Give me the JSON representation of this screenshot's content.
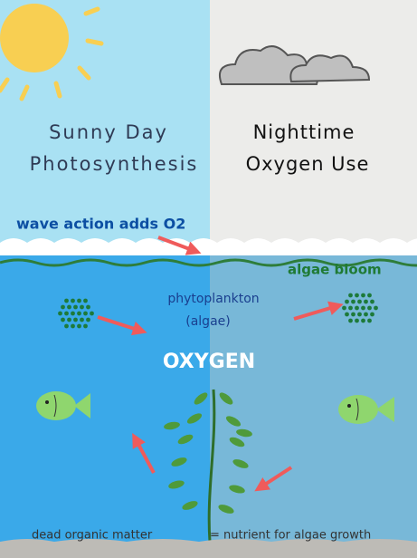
{
  "panels": {
    "day": {
      "line1": "Sunny Day",
      "line2": "Photosynthesis"
    },
    "night": {
      "line1": "Nighttime",
      "line2": "Oxygen Use"
    }
  },
  "labels": {
    "wave_action": "wave action  adds O2",
    "algae_bloom": "algae bloom",
    "phytoplankton": "phytoplankton",
    "algae": "(algae)",
    "oxygen": "OXYGEN",
    "dead_matter": "dead organic matter",
    "nutrient": "= nutrient for algae growth"
  }
}
